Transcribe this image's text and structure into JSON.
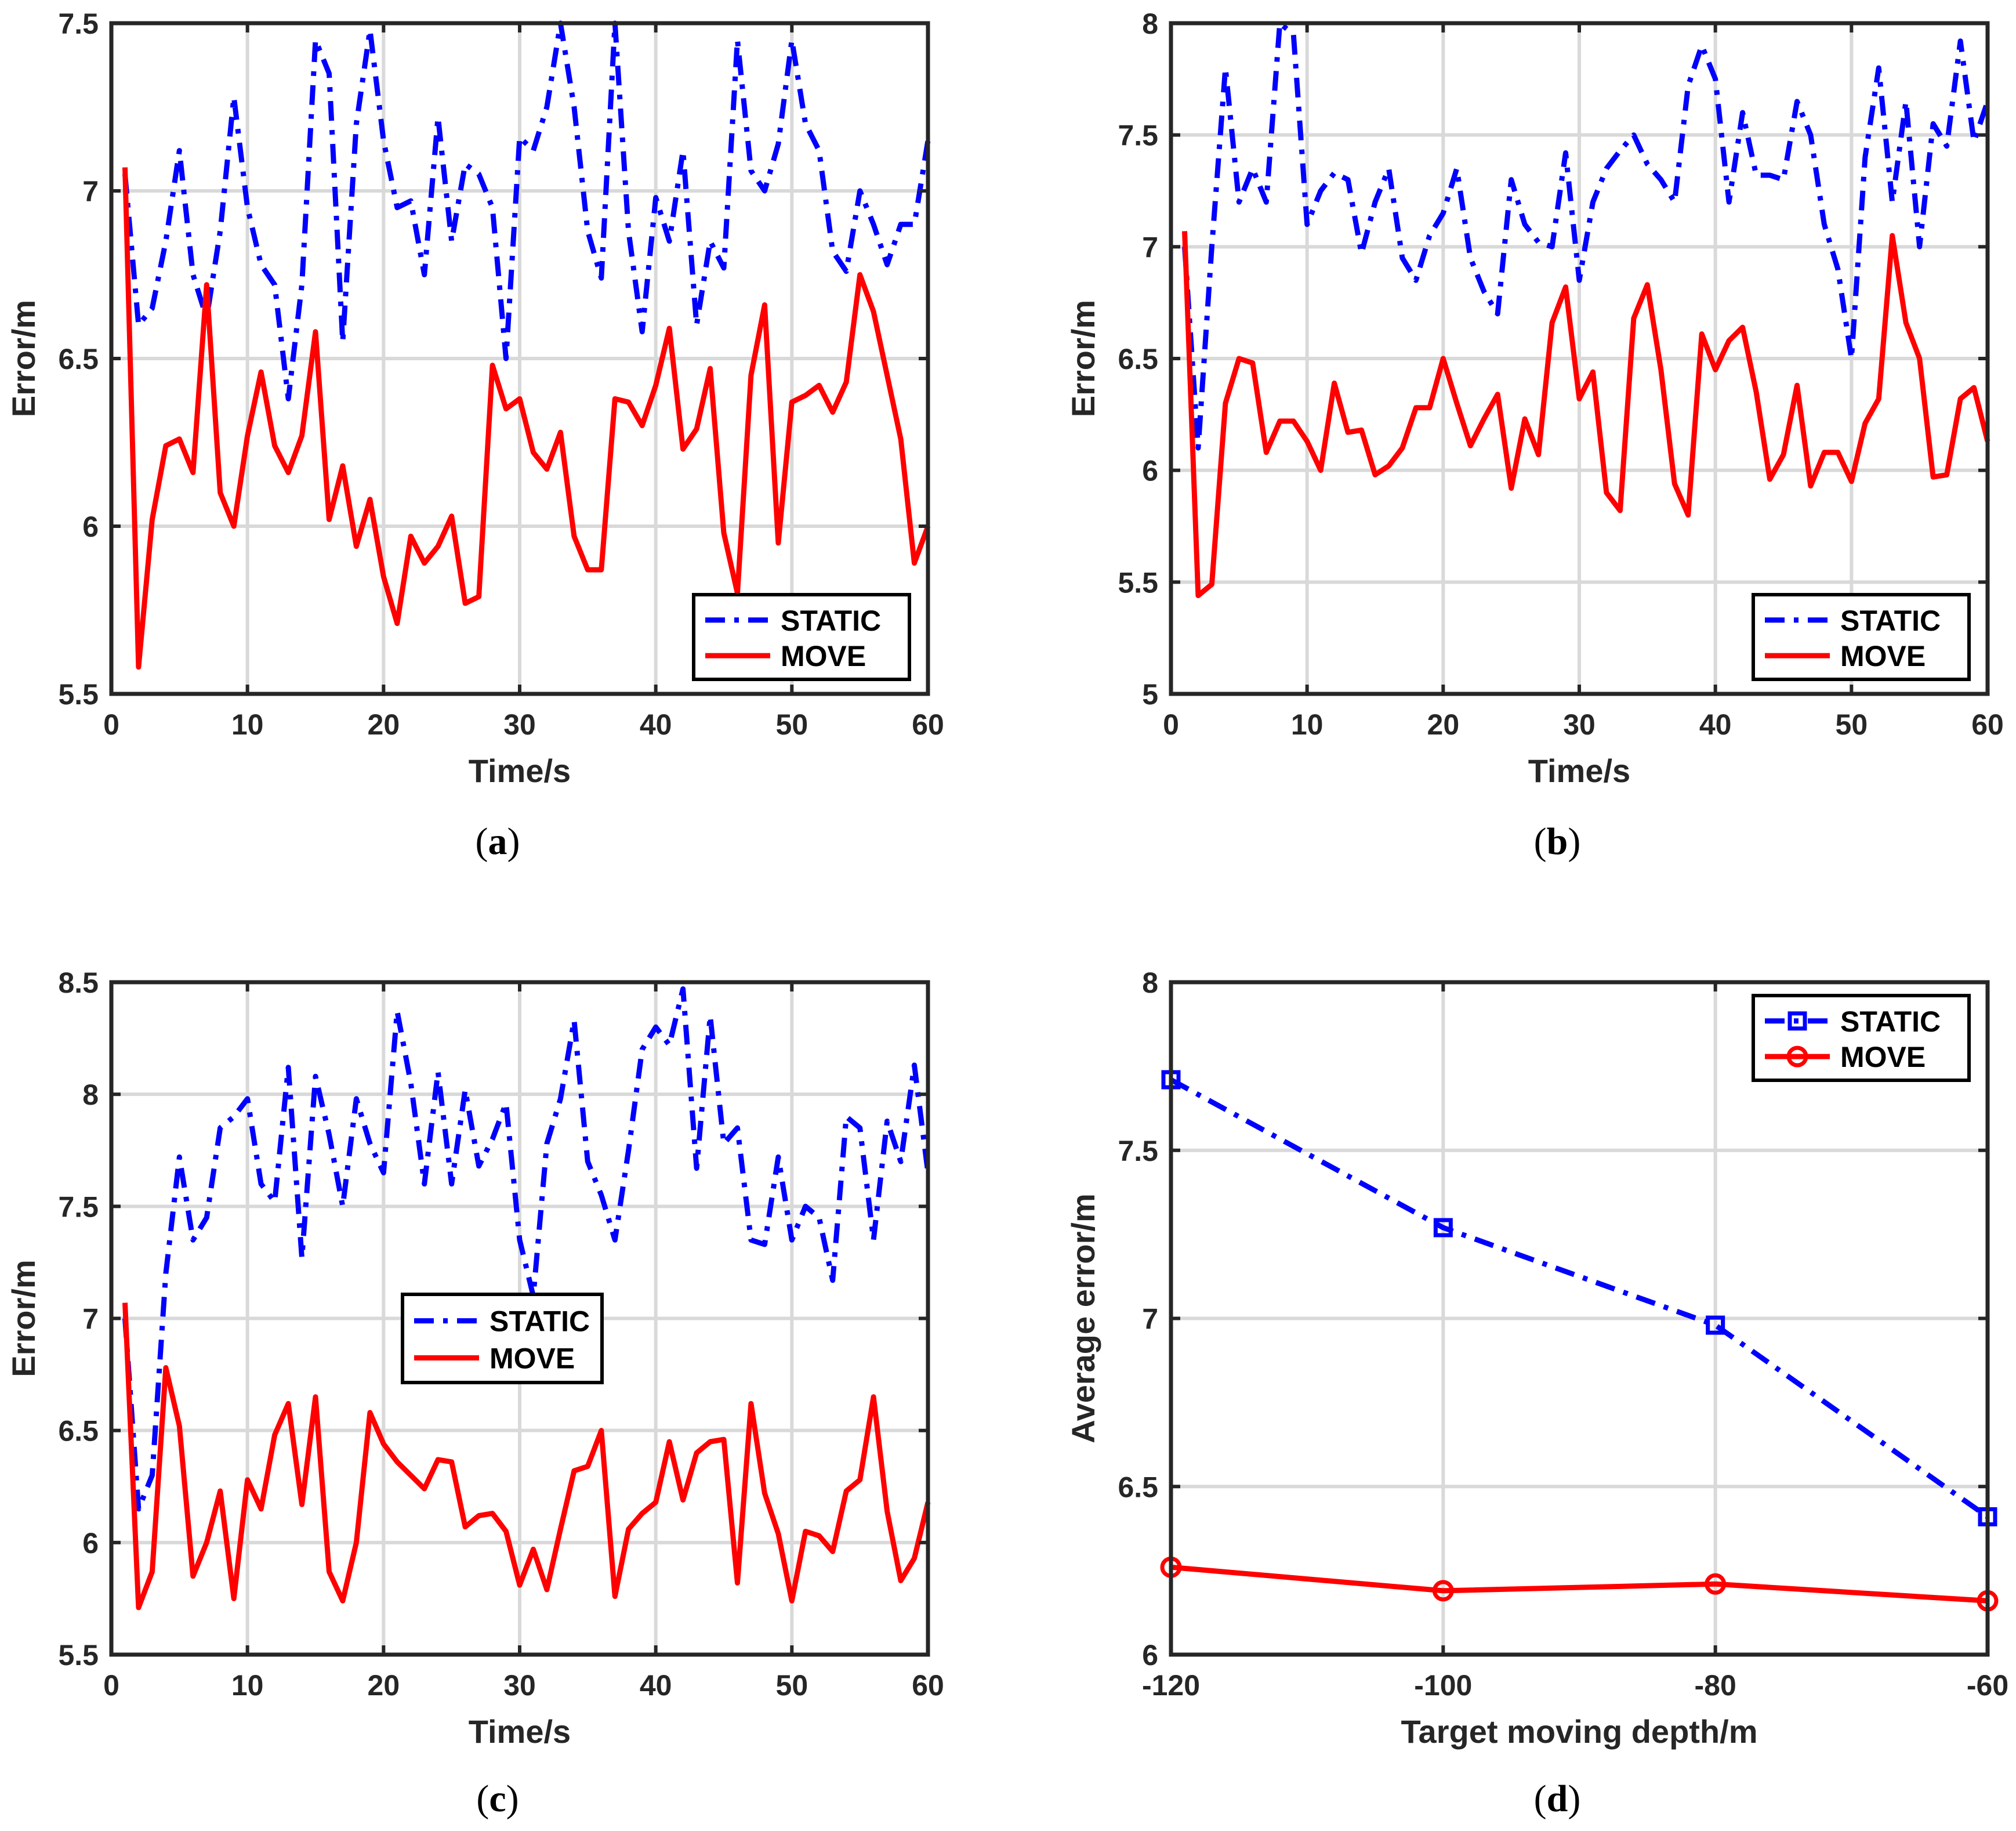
{
  "colors": {
    "static": "#0000ff",
    "move": "#ff0000",
    "grid": "#d9d9d9",
    "axis": "#262626"
  },
  "chart_data": [
    {
      "id": "a",
      "type": "line",
      "caption": {
        "open": "(",
        "letter": "a",
        "close": ")"
      },
      "xlabel": "Time/s",
      "ylabel": "Error/m",
      "xlim": [
        0,
        60
      ],
      "ylim": [
        5.5,
        7.5
      ],
      "xticks": [
        0,
        10,
        20,
        30,
        40,
        50,
        60
      ],
      "xtick_labels": [
        "0",
        "10",
        "20",
        "30",
        "40",
        "50",
        "60"
      ],
      "yticks": [
        5.5,
        6,
        6.5,
        7,
        7.5
      ],
      "ytick_labels": [
        "5.5",
        "6",
        "6.5",
        "7",
        "7.5"
      ],
      "grid": true,
      "legend_position": "bottom-right",
      "series": [
        {
          "name": "STATIC",
          "style": "dashdot",
          "x": [
            1,
            2,
            3,
            4,
            5,
            6,
            7,
            8,
            9,
            10,
            11,
            12,
            13,
            14,
            15,
            16,
            17,
            18,
            19,
            20,
            21,
            22,
            23,
            24,
            25,
            26,
            27,
            28,
            29,
            30,
            31,
            32,
            33,
            34,
            35,
            36,
            37,
            38,
            39,
            40,
            41,
            42,
            43,
            44,
            45,
            46,
            47,
            48,
            49,
            50,
            51,
            52,
            53,
            54,
            55,
            56,
            57,
            58,
            59,
            60
          ],
          "values": [
            7.05,
            6.6,
            6.65,
            6.85,
            7.12,
            6.75,
            6.62,
            6.88,
            7.28,
            6.95,
            6.78,
            6.72,
            6.38,
            6.72,
            7.45,
            7.35,
            6.55,
            7.2,
            7.48,
            7.15,
            6.95,
            6.97,
            6.75,
            7.22,
            6.85,
            7.08,
            7.05,
            6.95,
            6.5,
            7.16,
            7.12,
            7.25,
            7.5,
            7.25,
            6.88,
            6.74,
            7.5,
            6.88,
            6.58,
            6.98,
            6.85,
            7.12,
            6.6,
            6.85,
            6.77,
            7.45,
            7.06,
            7.0,
            7.14,
            7.45,
            7.2,
            7.12,
            6.82,
            6.76,
            7.0,
            6.9,
            6.78,
            6.9,
            6.9,
            7.15
          ]
        },
        {
          "name": "MOVE",
          "style": "solid",
          "x": [
            1,
            2,
            3,
            4,
            5,
            6,
            7,
            8,
            9,
            10,
            11,
            12,
            13,
            14,
            15,
            16,
            17,
            18,
            19,
            20,
            21,
            22,
            23,
            24,
            25,
            26,
            27,
            28,
            29,
            30,
            31,
            32,
            33,
            34,
            35,
            36,
            37,
            38,
            39,
            40,
            41,
            42,
            43,
            44,
            45,
            46,
            47,
            48,
            49,
            50,
            51,
            52,
            53,
            54,
            55,
            56,
            57,
            58,
            59,
            60
          ],
          "values": [
            7.07,
            5.58,
            6.02,
            6.24,
            6.26,
            6.16,
            6.72,
            6.1,
            6.0,
            6.27,
            6.46,
            6.24,
            6.16,
            6.27,
            6.58,
            6.02,
            6.18,
            5.94,
            6.08,
            5.85,
            5.71,
            5.97,
            5.89,
            5.94,
            6.03,
            5.77,
            5.79,
            6.48,
            6.35,
            6.38,
            6.22,
            6.17,
            6.28,
            5.97,
            5.87,
            5.87,
            6.38,
            6.37,
            6.3,
            6.42,
            6.59,
            6.23,
            6.29,
            6.47,
            5.98,
            5.8,
            6.45,
            6.66,
            5.95,
            6.37,
            6.39,
            6.42,
            6.34,
            6.43,
            6.75,
            6.64,
            6.45,
            6.26,
            5.89,
            6.0
          ]
        }
      ]
    },
    {
      "id": "b",
      "type": "line",
      "caption": {
        "open": "(",
        "letter": "b",
        "close": ")"
      },
      "xlabel": "Time/s",
      "ylabel": "Error/m",
      "xlim": [
        0,
        60
      ],
      "ylim": [
        5,
        8
      ],
      "xticks": [
        0,
        10,
        20,
        30,
        40,
        50,
        60
      ],
      "xtick_labels": [
        "0",
        "10",
        "20",
        "30",
        "40",
        "50",
        "60"
      ],
      "yticks": [
        5,
        5.5,
        6,
        6.5,
        7,
        7.5,
        8
      ],
      "ytick_labels": [
        "5",
        "5.5",
        "6",
        "6.5",
        "7",
        "7.5",
        "8"
      ],
      "grid": true,
      "legend_position": "bottom-right",
      "series": [
        {
          "name": "STATIC",
          "style": "dashdot",
          "x": [
            1,
            2,
            3,
            4,
            5,
            6,
            7,
            8,
            9,
            10,
            11,
            12,
            13,
            14,
            15,
            16,
            17,
            18,
            19,
            20,
            21,
            22,
            23,
            24,
            25,
            26,
            27,
            28,
            29,
            30,
            31,
            32,
            33,
            34,
            35,
            36,
            37,
            38,
            39,
            40,
            41,
            42,
            43,
            44,
            45,
            46,
            47,
            48,
            49,
            50,
            51,
            52,
            53,
            54,
            55,
            56,
            57,
            58,
            59,
            60
          ],
          "values": [
            7.0,
            6.1,
            7.0,
            7.8,
            7.2,
            7.35,
            7.2,
            8.0,
            7.95,
            7.1,
            7.25,
            7.33,
            7.3,
            6.97,
            7.2,
            7.35,
            6.95,
            6.85,
            7.05,
            7.15,
            7.35,
            6.95,
            6.8,
            6.7,
            7.3,
            7.1,
            7.02,
            7.0,
            7.42,
            6.85,
            7.2,
            7.35,
            7.43,
            7.5,
            7.37,
            7.3,
            7.2,
            7.72,
            7.9,
            7.75,
            7.2,
            7.6,
            7.32,
            7.32,
            7.3,
            7.65,
            7.5,
            7.1,
            6.9,
            6.5,
            7.4,
            7.8,
            7.2,
            7.65,
            7.0,
            7.55,
            7.45,
            7.92,
            7.47,
            7.65
          ]
        },
        {
          "name": "MOVE",
          "style": "solid",
          "x": [
            1,
            2,
            3,
            4,
            5,
            6,
            7,
            8,
            9,
            10,
            11,
            12,
            13,
            14,
            15,
            16,
            17,
            18,
            19,
            20,
            21,
            22,
            23,
            24,
            25,
            26,
            27,
            28,
            29,
            30,
            31,
            32,
            33,
            34,
            35,
            36,
            37,
            38,
            39,
            40,
            41,
            42,
            43,
            44,
            45,
            46,
            47,
            48,
            49,
            50,
            51,
            52,
            53,
            54,
            55,
            56,
            57,
            58,
            59,
            60
          ],
          "values": [
            7.07,
            5.44,
            5.49,
            6.3,
            6.5,
            6.48,
            6.08,
            6.22,
            6.22,
            6.13,
            6.0,
            6.39,
            6.17,
            6.18,
            5.98,
            6.02,
            6.1,
            6.28,
            6.28,
            6.5,
            6.3,
            6.11,
            6.23,
            6.34,
            5.92,
            6.23,
            6.07,
            6.66,
            6.82,
            6.32,
            6.44,
            5.9,
            5.82,
            6.68,
            6.83,
            6.45,
            5.94,
            5.8,
            6.61,
            6.45,
            6.58,
            6.64,
            6.35,
            5.96,
            6.07,
            6.38,
            5.93,
            6.08,
            6.08,
            5.95,
            6.21,
            6.32,
            7.05,
            6.66,
            6.5,
            5.97,
            5.98,
            6.32,
            6.37,
            6.13
          ]
        }
      ]
    },
    {
      "id": "c",
      "type": "line",
      "caption": {
        "open": "(",
        "letter": "c",
        "close": ")"
      },
      "xlabel": "Time/s",
      "ylabel": "Error/m",
      "xlim": [
        0,
        60
      ],
      "ylim": [
        5.5,
        8.5
      ],
      "xticks": [
        0,
        10,
        20,
        30,
        40,
        50,
        60
      ],
      "xtick_labels": [
        "0",
        "10",
        "20",
        "30",
        "40",
        "50",
        "60"
      ],
      "yticks": [
        5.5,
        6,
        6.5,
        7,
        7.5,
        8,
        8.5
      ],
      "ytick_labels": [
        "5.5",
        "6",
        "6.5",
        "7",
        "7.5",
        "8",
        "8.5"
      ],
      "grid": true,
      "legend_position": "center",
      "series": [
        {
          "name": "STATIC",
          "style": "dashdot",
          "x": [
            1,
            2,
            3,
            4,
            5,
            6,
            7,
            8,
            9,
            10,
            11,
            12,
            13,
            14,
            15,
            16,
            17,
            18,
            19,
            20,
            21,
            22,
            23,
            24,
            25,
            26,
            27,
            28,
            29,
            30,
            31,
            32,
            33,
            34,
            35,
            36,
            37,
            38,
            39,
            40,
            41,
            42,
            43,
            44,
            45,
            46,
            47,
            48,
            49,
            50,
            51,
            52,
            53,
            54,
            55,
            56,
            57,
            58,
            59,
            60
          ],
          "values": [
            7.0,
            6.15,
            6.3,
            7.2,
            7.72,
            7.35,
            7.45,
            7.85,
            7.9,
            7.98,
            7.6,
            7.52,
            8.12,
            7.27,
            8.08,
            7.82,
            7.5,
            7.98,
            7.78,
            7.65,
            8.37,
            8.05,
            7.6,
            8.1,
            7.6,
            8.02,
            7.68,
            7.8,
            7.96,
            7.35,
            7.1,
            7.78,
            7.98,
            8.33,
            7.7,
            7.55,
            7.35,
            7.75,
            8.2,
            8.3,
            8.22,
            8.47,
            7.67,
            8.35,
            7.78,
            7.85,
            7.35,
            7.33,
            7.72,
            7.35,
            7.5,
            7.45,
            7.17,
            7.9,
            7.85,
            7.35,
            7.88,
            7.7,
            8.13,
            7.65
          ]
        },
        {
          "name": "MOVE",
          "style": "solid",
          "x": [
            1,
            2,
            3,
            4,
            5,
            6,
            7,
            8,
            9,
            10,
            11,
            12,
            13,
            14,
            15,
            16,
            17,
            18,
            19,
            20,
            21,
            22,
            23,
            24,
            25,
            26,
            27,
            28,
            29,
            30,
            31,
            32,
            33,
            34,
            35,
            36,
            37,
            38,
            39,
            40,
            41,
            42,
            43,
            44,
            45,
            46,
            47,
            48,
            49,
            50,
            51,
            52,
            53,
            54,
            55,
            56,
            57,
            58,
            59,
            60
          ],
          "values": [
            7.07,
            5.71,
            5.87,
            6.78,
            6.52,
            5.85,
            6.0,
            6.23,
            5.75,
            6.28,
            6.15,
            6.48,
            6.62,
            6.17,
            6.65,
            5.87,
            5.74,
            6.0,
            6.58,
            6.44,
            6.36,
            6.3,
            6.24,
            6.37,
            6.36,
            6.07,
            6.12,
            6.13,
            6.05,
            5.81,
            5.97,
            5.79,
            6.06,
            6.32,
            6.34,
            6.5,
            5.76,
            6.06,
            6.13,
            6.18,
            6.45,
            6.19,
            6.4,
            6.45,
            6.46,
            5.82,
            6.62,
            6.22,
            6.04,
            5.74,
            6.05,
            6.03,
            5.96,
            6.23,
            6.28,
            6.65,
            6.14,
            5.83,
            5.93,
            6.18
          ]
        }
      ]
    },
    {
      "id": "d",
      "type": "line",
      "caption": {
        "open": "(",
        "letter": "d",
        "close": ")"
      },
      "xlabel": "Target moving depth/m",
      "ylabel": "Average error/m",
      "xlim": [
        -120,
        -60
      ],
      "ylim": [
        6,
        8
      ],
      "xticks": [
        -120,
        -100,
        -80,
        -60
      ],
      "xtick_labels": [
        "-120",
        "-100",
        "-80",
        "-60"
      ],
      "yticks": [
        6,
        6.5,
        7,
        7.5,
        8
      ],
      "ytick_labels": [
        "6",
        "6.5",
        "7",
        "7.5",
        "8"
      ],
      "grid": true,
      "legend_position": "top-right",
      "series": [
        {
          "name": "STATIC",
          "style": "dashdot",
          "marker": "square",
          "x": [
            -120,
            -100,
            -80,
            -60
          ],
          "values": [
            7.71,
            7.27,
            6.98,
            6.41
          ]
        },
        {
          "name": "MOVE",
          "style": "solid",
          "marker": "circle",
          "x": [
            -120,
            -100,
            -80,
            -60
          ],
          "values": [
            6.26,
            6.19,
            6.21,
            6.16
          ]
        }
      ]
    }
  ]
}
